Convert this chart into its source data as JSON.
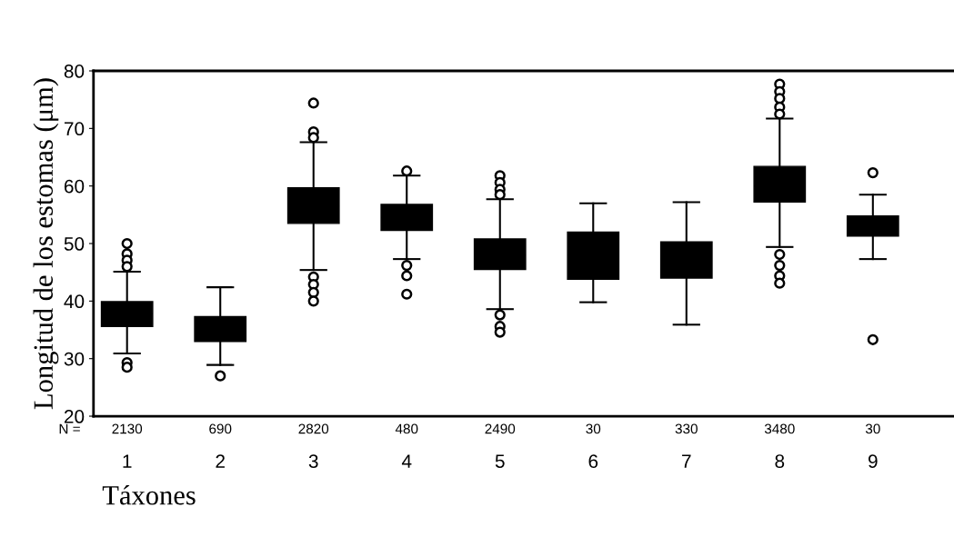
{
  "chart_data": {
    "type": "box",
    "xlabel": "Táxones",
    "ylabel": "Longitud de los estomas (μm)",
    "categories": [
      "1",
      "2",
      "3",
      "4",
      "5",
      "6",
      "7",
      "8",
      "9"
    ],
    "ylim": [
      20,
      80
    ],
    "yticks": [
      20,
      30,
      40,
      50,
      60,
      70,
      80
    ],
    "color": "#000000",
    "grid": false,
    "legend": false,
    "boxes": [
      {
        "low": 30.9,
        "q1": 35.6,
        "median": 37.8,
        "q3": 39.9,
        "high": 45.1,
        "outliers": [
          50.0,
          48.2,
          47.1,
          46.0,
          29.3,
          28.5
        ]
      },
      {
        "low": 28.9,
        "q1": 33.0,
        "median": 35.0,
        "q3": 37.3,
        "high": 42.4,
        "outliers": [
          27.0
        ]
      },
      {
        "low": 45.4,
        "q1": 53.5,
        "median": 56.5,
        "q3": 59.7,
        "high": 67.6,
        "outliers": [
          74.4,
          69.4,
          68.4,
          44.2,
          42.9,
          41.5,
          40.0
        ]
      },
      {
        "low": 47.3,
        "q1": 52.3,
        "median": 54.5,
        "q3": 56.8,
        "high": 61.8,
        "outliers": [
          62.6,
          46.2,
          44.4,
          41.2
        ]
      },
      {
        "low": 38.6,
        "q1": 45.5,
        "median": 48.0,
        "q3": 50.8,
        "high": 57.7,
        "outliers": [
          61.8,
          60.6,
          59.4,
          58.5,
          37.6,
          35.6,
          34.6
        ]
      },
      {
        "low": 39.8,
        "q1": 43.8,
        "median": 48.0,
        "q3": 52.0,
        "high": 57.0
      },
      {
        "low": 35.9,
        "q1": 44.0,
        "median": 47.0,
        "q3": 50.3,
        "high": 57.2
      },
      {
        "low": 49.4,
        "q1": 57.2,
        "median": 60.0,
        "q3": 63.4,
        "high": 71.7,
        "outliers": [
          77.7,
          76.4,
          75.2,
          73.7,
          72.5,
          48.1,
          46.2,
          44.4,
          43.1
        ]
      },
      {
        "low": 47.3,
        "q1": 51.3,
        "median": 53.0,
        "q3": 54.8,
        "high": 58.5,
        "outliers": [
          62.3,
          33.3
        ]
      }
    ],
    "annotations": [
      "N =",
      "2130",
      "690",
      "2820",
      "480",
      "2490",
      "30",
      "330",
      "3480",
      "30"
    ]
  }
}
